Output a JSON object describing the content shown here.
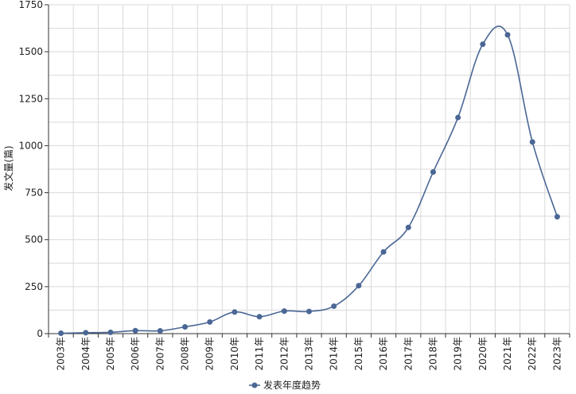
{
  "chart_data": {
    "type": "line",
    "title": "",
    "xlabel": "",
    "ylabel": "发文量(篇)",
    "ylim": [
      0,
      1750
    ],
    "yticks": [
      0,
      250,
      500,
      750,
      1000,
      1250,
      1500,
      1750
    ],
    "grid": true,
    "legend": "bottom-center",
    "color": "#4a6795",
    "categories": [
      "2003年",
      "2004年",
      "2005年",
      "2006年",
      "2007年",
      "2008年",
      "2009年",
      "2010年",
      "2011年",
      "2012年",
      "2013年",
      "2014年",
      "2015年",
      "2016年",
      "2017年",
      "2018年",
      "2019年",
      "2020年",
      "2021年",
      "2022年",
      "2023年"
    ],
    "series": [
      {
        "name": "发表年度趋势",
        "values": [
          2,
          5,
          7,
          16,
          15,
          36,
          62,
          115,
          90,
          120,
          118,
          146,
          255,
          435,
          565,
          860,
          1150,
          1540,
          1590,
          1020,
          622
        ]
      }
    ]
  }
}
